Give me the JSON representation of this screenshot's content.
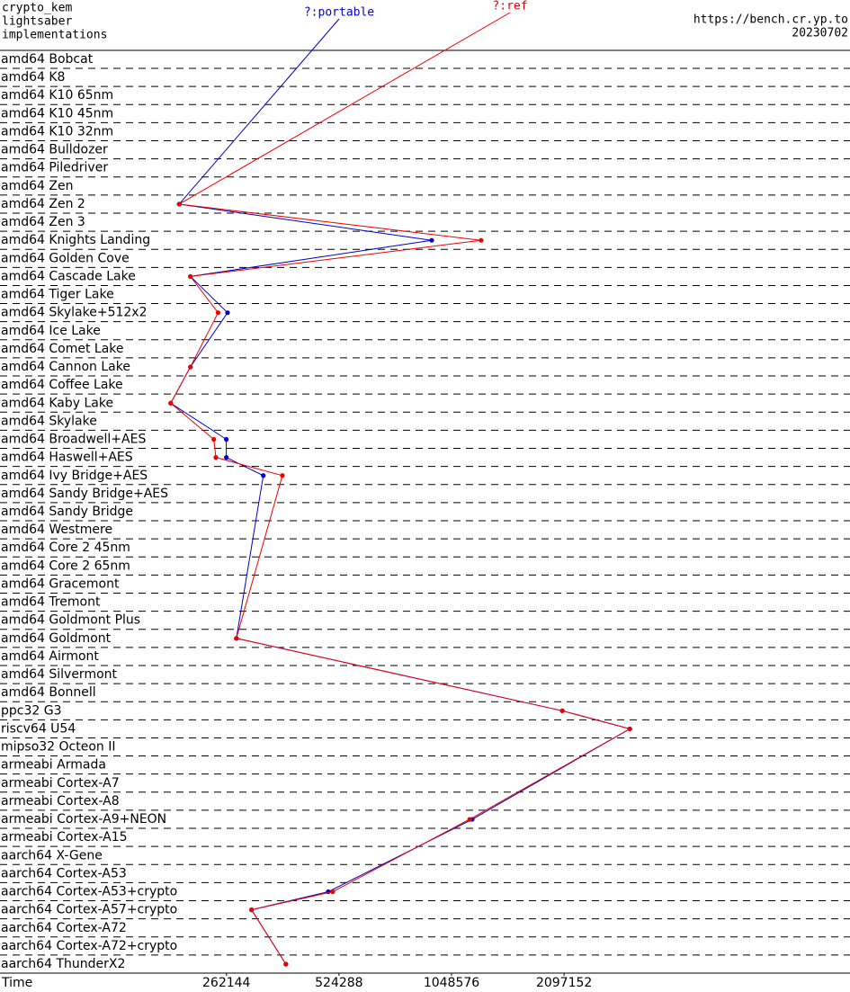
{
  "chart_data": {
    "type": "line",
    "header": [
      "crypto_kem",
      "lightsaber",
      "implementations"
    ],
    "header_right": [
      "https://bench.cr.yp.to",
      "20230702"
    ],
    "x_label": "Time",
    "xscale": "log",
    "xlim": [
      65000,
      12200000
    ],
    "xticks": [
      262144,
      524288,
      1048576,
      2097152
    ],
    "categories": [
      "amd64 Bobcat",
      "amd64 K8",
      "amd64 K10 65nm",
      "amd64 K10 45nm",
      "amd64 K10 32nm",
      "amd64 Bulldozer",
      "amd64 Piledriver",
      "amd64 Zen",
      "amd64 Zen 2",
      "amd64 Zen 3",
      "amd64 Knights Landing",
      "amd64 Golden Cove",
      "amd64 Cascade Lake",
      "amd64 Tiger Lake",
      "amd64 Skylake+512x2",
      "amd64 Ice Lake",
      "amd64 Comet Lake",
      "amd64 Cannon Lake",
      "amd64 Coffee Lake",
      "amd64 Kaby Lake",
      "amd64 Skylake",
      "amd64 Broadwell+AES",
      "amd64 Haswell+AES",
      "amd64 Ivy Bridge+AES",
      "amd64 Sandy Bridge+AES",
      "amd64 Sandy Bridge",
      "amd64 Westmere",
      "amd64 Core 2 45nm",
      "amd64 Core 2 65nm",
      "amd64 Gracemont",
      "amd64 Tremont",
      "amd64 Goldmont Plus",
      "amd64 Goldmont",
      "amd64 Airmont",
      "amd64 Silvermont",
      "amd64 Bonnell",
      "ppc32 G3",
      "riscv64 U54",
      "mipso32 Octeon II",
      "armeabi Armada",
      "armeabi Cortex-A7",
      "armeabi Cortex-A8",
      "armeabi Cortex-A9+NEON",
      "armeabi Cortex-A15",
      "aarch64 X-Gene",
      "aarch64 Cortex-A53",
      "aarch64 Cortex-A53+crypto",
      "aarch64 Cortex-A57+crypto",
      "aarch64 Cortex-A72",
      "aarch64 Cortex-A72+crypto",
      "aarch64 ThunderX2"
    ],
    "series": [
      {
        "name": "?:portable",
        "color": "#0000cc",
        "values": [
          null,
          null,
          null,
          null,
          null,
          null,
          null,
          null,
          196000,
          null,
          928000,
          null,
          210000,
          null,
          264000,
          null,
          null,
          210000,
          null,
          186000,
          null,
          262000,
          262000,
          329000,
          null,
          null,
          null,
          null,
          null,
          null,
          null,
          null,
          278700,
          null,
          null,
          null,
          2074000,
          3143000,
          null,
          null,
          null,
          null,
          1191000,
          null,
          null,
          null,
          490800,
          306000,
          null,
          null,
          378000
        ]
      },
      {
        "name": "?:ref",
        "color": "#ee0000",
        "values": [
          null,
          null,
          null,
          null,
          null,
          null,
          null,
          null,
          196000,
          null,
          1258000,
          null,
          210000,
          null,
          249000,
          null,
          null,
          210000,
          null,
          186000,
          null,
          242500,
          245600,
          370000,
          null,
          null,
          null,
          null,
          null,
          null,
          null,
          null,
          278700,
          null,
          null,
          null,
          2074000,
          3143000,
          null,
          null,
          null,
          null,
          1172000,
          null,
          null,
          null,
          504400,
          306000,
          null,
          null,
          378000
        ]
      }
    ]
  }
}
